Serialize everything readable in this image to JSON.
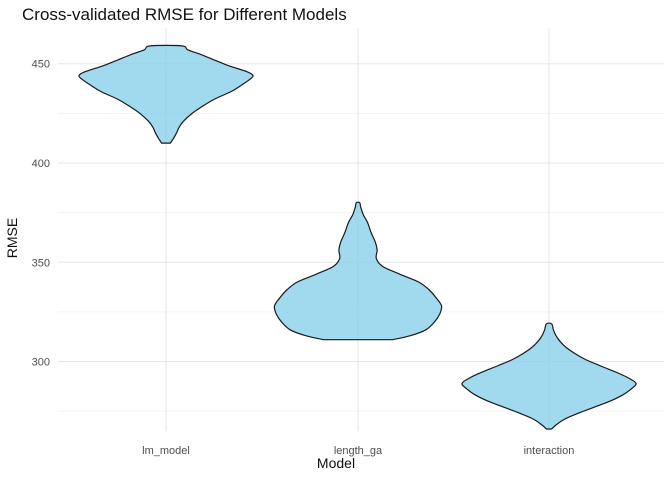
{
  "chart_data": {
    "type": "violin",
    "title": "Cross-validated RMSE for Different Models",
    "xlabel": "Model",
    "ylabel": "RMSE",
    "ylim": [
      265,
      468
    ],
    "y_ticks": [
      300,
      350,
      400,
      450
    ],
    "categories": [
      "lm_model",
      "length_ga",
      "interaction"
    ],
    "grid": true,
    "fill_color": "#87CEEB",
    "stroke_color": "#1a1a1a",
    "series": [
      {
        "category": "lm_model",
        "min": 410,
        "max": 459,
        "profile": [
          [
            410,
            0.05
          ],
          [
            412,
            0.08
          ],
          [
            415,
            0.12
          ],
          [
            418,
            0.15
          ],
          [
            421,
            0.2
          ],
          [
            425,
            0.3
          ],
          [
            428,
            0.4
          ],
          [
            432,
            0.55
          ],
          [
            436,
            0.75
          ],
          [
            439,
            0.86
          ],
          [
            442,
            0.96
          ],
          [
            444,
            1.0
          ],
          [
            446,
            0.93
          ],
          [
            449,
            0.72
          ],
          [
            452,
            0.55
          ],
          [
            455,
            0.38
          ],
          [
            457,
            0.25
          ],
          [
            459,
            0.18
          ]
        ]
      },
      {
        "category": "length_ga",
        "min": 311,
        "max": 380,
        "profile": [
          [
            311,
            0.4
          ],
          [
            313,
            0.6
          ],
          [
            316,
            0.78
          ],
          [
            320,
            0.88
          ],
          [
            324,
            0.94
          ],
          [
            328,
            0.96
          ],
          [
            332,
            0.9
          ],
          [
            336,
            0.82
          ],
          [
            340,
            0.7
          ],
          [
            344,
            0.48
          ],
          [
            348,
            0.28
          ],
          [
            352,
            0.21
          ],
          [
            356,
            0.22
          ],
          [
            360,
            0.2
          ],
          [
            365,
            0.15
          ],
          [
            370,
            0.11
          ],
          [
            374,
            0.06
          ],
          [
            378,
            0.03
          ],
          [
            380,
            0.02
          ]
        ]
      },
      {
        "category": "interaction",
        "min": 266,
        "max": 319,
        "profile": [
          [
            266,
            0.03
          ],
          [
            268,
            0.08
          ],
          [
            271,
            0.18
          ],
          [
            274,
            0.34
          ],
          [
            277,
            0.52
          ],
          [
            280,
            0.7
          ],
          [
            283,
            0.84
          ],
          [
            286,
            0.94
          ],
          [
            289,
            1.0
          ],
          [
            292,
            0.9
          ],
          [
            295,
            0.75
          ],
          [
            298,
            0.58
          ],
          [
            301,
            0.42
          ],
          [
            304,
            0.3
          ],
          [
            307,
            0.2
          ],
          [
            310,
            0.13
          ],
          [
            313,
            0.08
          ],
          [
            316,
            0.05
          ],
          [
            319,
            0.03
          ]
        ]
      }
    ]
  }
}
